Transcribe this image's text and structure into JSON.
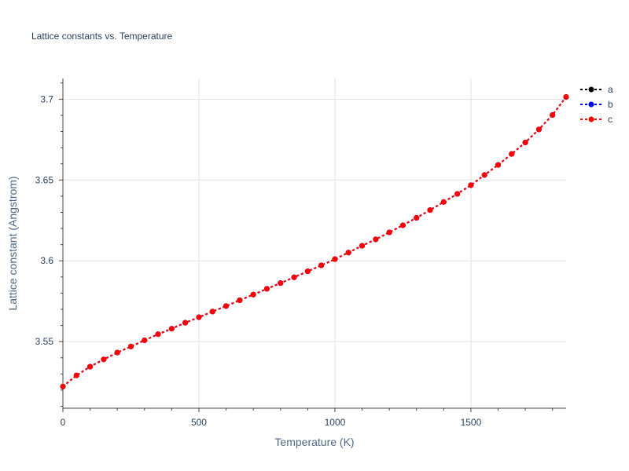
{
  "chart_data": {
    "type": "line",
    "title": "Lattice constants vs. Temperature",
    "xlabel": "Temperature (K)",
    "ylabel": "Lattice constant (Angstrom)",
    "xlim": [
      0,
      1850
    ],
    "ylim": [
      3.5088,
      3.7128
    ],
    "xticks": [
      0,
      500,
      1000,
      1500
    ],
    "yticks": [
      3.55,
      3.6,
      3.65,
      3.7
    ],
    "xtick_labels": [
      "0",
      "500",
      "1000",
      "1500"
    ],
    "ytick_labels": [
      "3.55",
      "3.6",
      "3.65",
      "3.7"
    ],
    "grid": true,
    "legend_position": "top-right",
    "x": [
      0,
      50,
      100,
      150,
      200,
      250,
      300,
      350,
      400,
      450,
      500,
      550,
      600,
      650,
      700,
      750,
      800,
      850,
      900,
      950,
      1000,
      1050,
      1100,
      1150,
      1200,
      1250,
      1300,
      1350,
      1400,
      1450,
      1500,
      1550,
      1600,
      1650,
      1700,
      1750,
      1800,
      1850
    ],
    "series": [
      {
        "name": "a",
        "color": "#000000",
        "values": [
          3.5222,
          3.5291,
          3.5345,
          3.539,
          3.5432,
          3.547,
          3.5508,
          3.5546,
          3.558,
          3.5617,
          3.5651,
          3.5686,
          3.572,
          3.5756,
          3.5791,
          3.5827,
          3.5862,
          3.5898,
          3.5935,
          3.5972,
          3.601,
          3.6051,
          3.6093,
          3.6133,
          3.6176,
          3.622,
          3.6266,
          3.6314,
          3.6364,
          3.6414,
          3.6468,
          3.6531,
          3.6593,
          3.6661,
          3.6732,
          3.6813,
          3.6902,
          3.7014
        ]
      },
      {
        "name": "b",
        "color": "#0000ff",
        "values": [
          3.5222,
          3.5291,
          3.5345,
          3.539,
          3.5432,
          3.547,
          3.5508,
          3.5546,
          3.558,
          3.5617,
          3.5651,
          3.5686,
          3.572,
          3.5756,
          3.5791,
          3.5827,
          3.5862,
          3.5898,
          3.5935,
          3.5972,
          3.601,
          3.6051,
          3.6093,
          3.6133,
          3.6176,
          3.622,
          3.6266,
          3.6314,
          3.6364,
          3.6414,
          3.6468,
          3.6531,
          3.6593,
          3.6661,
          3.6732,
          3.6813,
          3.6902,
          3.7014
        ]
      },
      {
        "name": "c",
        "color": "#ff0000",
        "values": [
          3.5222,
          3.5291,
          3.5345,
          3.539,
          3.5432,
          3.547,
          3.5508,
          3.5546,
          3.558,
          3.5617,
          3.5651,
          3.5686,
          3.572,
          3.5756,
          3.5791,
          3.5827,
          3.5862,
          3.5898,
          3.5935,
          3.5972,
          3.601,
          3.6051,
          3.6093,
          3.6133,
          3.6176,
          3.622,
          3.6266,
          3.6314,
          3.6364,
          3.6414,
          3.6468,
          3.6531,
          3.6593,
          3.6661,
          3.6732,
          3.6813,
          3.6902,
          3.7014
        ]
      }
    ]
  }
}
